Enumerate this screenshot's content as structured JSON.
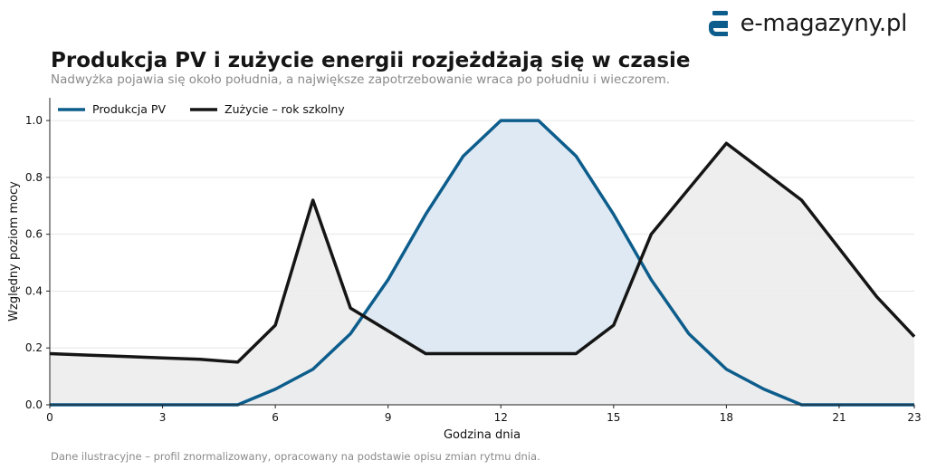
{
  "brand": {
    "name": "e-magazyny.pl",
    "logo_color": "#0d5d8c"
  },
  "header": {
    "title": "Produkcja PV i zużycie energii rozjeżdżają się w czasie",
    "subtitle": "Nadwyżka pojawia się około południa, a największe zapotrzebowanie wraca po południu i wieczorem."
  },
  "footnote": "Dane ilustracyjne – profil znormalizowany, opracowany na podstawie opisu zmian rytmu dnia.",
  "chart_data": {
    "type": "area",
    "xlabel": "Godzina dnia",
    "ylabel": "Względny poziom mocy",
    "xlim": [
      0,
      23
    ],
    "ylim": [
      0,
      1.08
    ],
    "xticks": [
      0,
      3,
      6,
      9,
      12,
      15,
      18,
      21,
      23
    ],
    "yticks": [
      0.0,
      0.2,
      0.4,
      0.6,
      0.8,
      1.0
    ],
    "ytick_labels": [
      "0.0",
      "0.2",
      "0.4",
      "0.6",
      "0.8",
      "1.0"
    ],
    "grid": "horizontal",
    "legend_position": "top-left",
    "x": [
      0,
      1,
      2,
      3,
      4,
      5,
      6,
      7,
      8,
      9,
      10,
      11,
      12,
      13,
      14,
      15,
      16,
      17,
      18,
      19,
      20,
      21,
      22,
      23
    ],
    "series": [
      {
        "name": "Produkcja PV",
        "color": "#0d5d8c",
        "fill_color": "#dce8f2",
        "values": [
          0,
          0,
          0,
          0,
          0,
          0,
          0.055,
          0.125,
          0.25,
          0.44,
          0.67,
          0.875,
          1.0,
          1.0,
          0.875,
          0.67,
          0.44,
          0.25,
          0.125,
          0.055,
          0,
          0,
          0,
          0
        ]
      },
      {
        "name": "Zużycie – rok szkolny",
        "color": "#151515",
        "fill_color": "#ececec",
        "values": [
          0.18,
          0.175,
          0.17,
          0.165,
          0.16,
          0.15,
          0.28,
          0.72,
          0.34,
          0.26,
          0.18,
          0.18,
          0.18,
          0.18,
          0.18,
          0.28,
          0.6,
          0.76,
          0.92,
          0.82,
          0.72,
          0.55,
          0.38,
          0.24
        ]
      }
    ]
  }
}
